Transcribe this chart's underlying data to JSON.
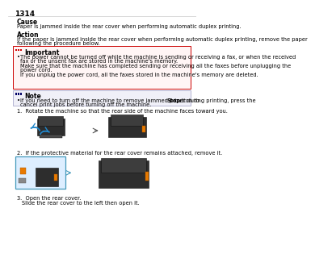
{
  "page_num": "1314",
  "bg_color": "#ffffff",
  "text_color": "#000000",
  "cause_title": "Cause",
  "cause_text": "Paper is jammed inside the rear cover when performing automatic duplex printing.",
  "action_title": "Action",
  "action_text_1": "If the paper is jammed inside the rear cover when performing automatic duplex printing, remove the paper",
  "action_text_2": "following the procedure below.",
  "important_title": "Important",
  "important_icon_color": "#cc0000",
  "important_bg": "#fff5f5",
  "important_border": "#cc0000",
  "important_b1_1": "The power cannot be turned off while the machine is sending or receiving a fax, or when the received",
  "important_b1_2": "fax or the unsent fax are stored in the machine's memory.",
  "important_b2_1": "Make sure that the machine has completed sending or receiving all the faxes before unplugging the",
  "important_b2_2": "power cord.",
  "important_b3": "If you unplug the power cord, all the faxes stored in the machine's memory are deleted.",
  "note_title": "Note",
  "note_icon_color": "#000066",
  "note_bg": "#f0f0f8",
  "note_border": "#aaaacc",
  "note_b1_1": "If you need to turn off the machine to remove jammed paper during printing, press the ",
  "note_b1_bold": "Stop",
  "note_b1_2": " button to",
  "note_b1_3": "cancel print jobs before turning off the machine.",
  "step1_text": "1.  Rotate the machine so that the rear side of the machine faces toward you.",
  "step2_text": "2.  If the protective material for the rear cover remains attached, remove it.",
  "step3_text": "3.  Open the rear cover.",
  "step3_sub": "Slide the rear cover to the left then open it.",
  "printer_dark": "#2d2d2d",
  "printer_mid": "#3d3d3d",
  "printer_light": "#4a4a4a",
  "orange_color": "#e87a00",
  "blue_arrow": "#2288cc",
  "zoom_bg": "#ddeeff",
  "zoom_border": "#4499bb"
}
